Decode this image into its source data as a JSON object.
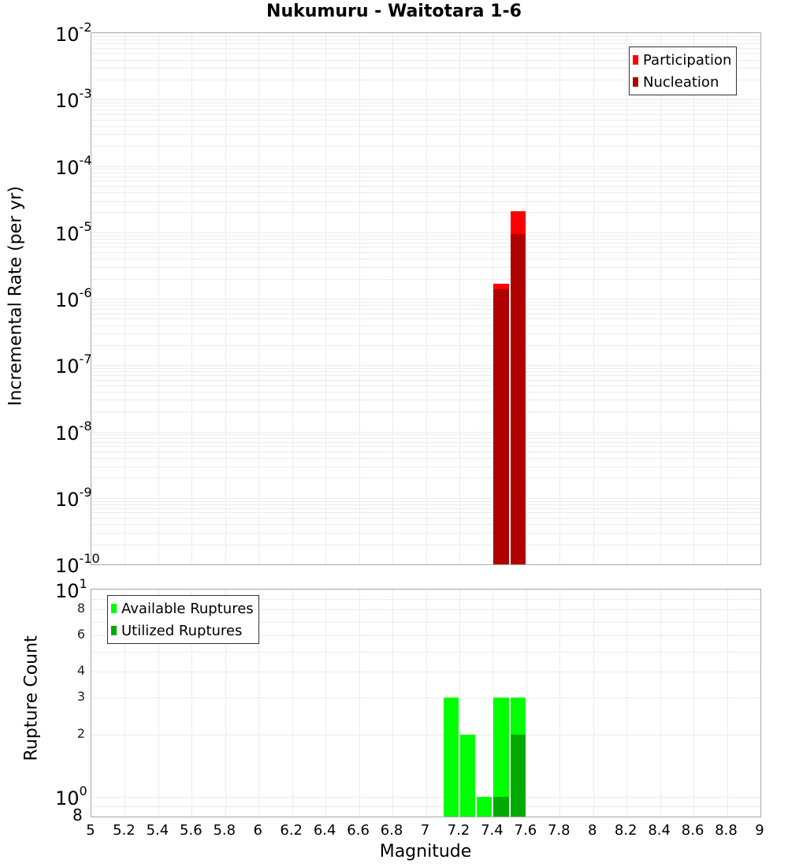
{
  "chart_data": [
    {
      "type": "bar",
      "title": "Nukumuru - Waitotara 1-6",
      "xlabel": "Magnitude",
      "ylabel": "Incremental Rate (per yr)",
      "yscale": "log",
      "ylim": [
        1e-10,
        0.01
      ],
      "xlim": [
        5,
        9
      ],
      "grid": true,
      "legend_position": "top-right",
      "bin_width": 0.1,
      "x": [
        7.45,
        7.55
      ],
      "series": [
        {
          "name": "Participation",
          "color": "#ff0000",
          "values": [
            1.7e-06,
            2.1e-05
          ]
        },
        {
          "name": "Nucleation",
          "color": "#b00000",
          "values": [
            1.4e-06,
            9.3e-06
          ]
        }
      ],
      "ytick_labels": [
        "10^-2",
        "10^-3",
        "10^-4",
        "10^-5",
        "10^-6",
        "10^-7",
        "10^-8",
        "10^-9",
        "10^-10"
      ]
    },
    {
      "type": "bar",
      "xlabel": "Magnitude",
      "ylabel": "Rupture Count",
      "yscale": "log",
      "ylim": [
        0.8,
        10
      ],
      "xlim": [
        5,
        9
      ],
      "grid": true,
      "legend_position": "top-left",
      "bin_width": 0.1,
      "x": [
        7.15,
        7.25,
        7.35,
        7.45,
        7.55
      ],
      "series": [
        {
          "name": "Available Ruptures",
          "color": "#00ff00",
          "values": [
            3,
            2,
            1,
            3,
            3
          ]
        },
        {
          "name": "Utilized Ruptures",
          "color": "#00aa00",
          "values": [
            0,
            0,
            0,
            1,
            2
          ]
        }
      ],
      "ytick_labels": [
        "10^1",
        "8",
        "6",
        "4",
        "3",
        "2",
        "10^0",
        "8"
      ]
    }
  ],
  "title": "Nukumuru - Waitotara 1-6",
  "top": {
    "ylabel": "Incremental Rate (per yr)",
    "legend": [
      {
        "label": "Participation",
        "color": "#ff0000"
      },
      {
        "label": "Nucleation",
        "color": "#b00000"
      }
    ],
    "yticks": [
      {
        "base": "10",
        "exp": "-2"
      },
      {
        "base": "10",
        "exp": "-3"
      },
      {
        "base": "10",
        "exp": "-4"
      },
      {
        "base": "10",
        "exp": "-5"
      },
      {
        "base": "10",
        "exp": "-6"
      },
      {
        "base": "10",
        "exp": "-7"
      },
      {
        "base": "10",
        "exp": "-8"
      },
      {
        "base": "10",
        "exp": "-9"
      },
      {
        "base": "10",
        "exp": "-10"
      }
    ]
  },
  "bottom": {
    "ylabel": "Rupture Count",
    "legend": [
      {
        "label": "Available Ruptures",
        "color": "#00ff00"
      },
      {
        "label": "Utilized Ruptures",
        "color": "#00aa00"
      }
    ],
    "major_ticks": [
      {
        "base": "10",
        "exp": "1"
      },
      {
        "base": "10",
        "exp": "0"
      }
    ],
    "minor_ticks": [
      "8",
      "6",
      "4",
      "3",
      "2"
    ],
    "bottom_tick": "8"
  },
  "xaxis": {
    "label": "Magnitude",
    "ticks": [
      "5",
      "5.2",
      "5.4",
      "5.6",
      "5.8",
      "6",
      "6.2",
      "6.4",
      "6.6",
      "6.8",
      "7",
      "7.2",
      "7.4",
      "7.6",
      "7.8",
      "8",
      "8.2",
      "8.4",
      "8.6",
      "8.8",
      "9"
    ]
  }
}
